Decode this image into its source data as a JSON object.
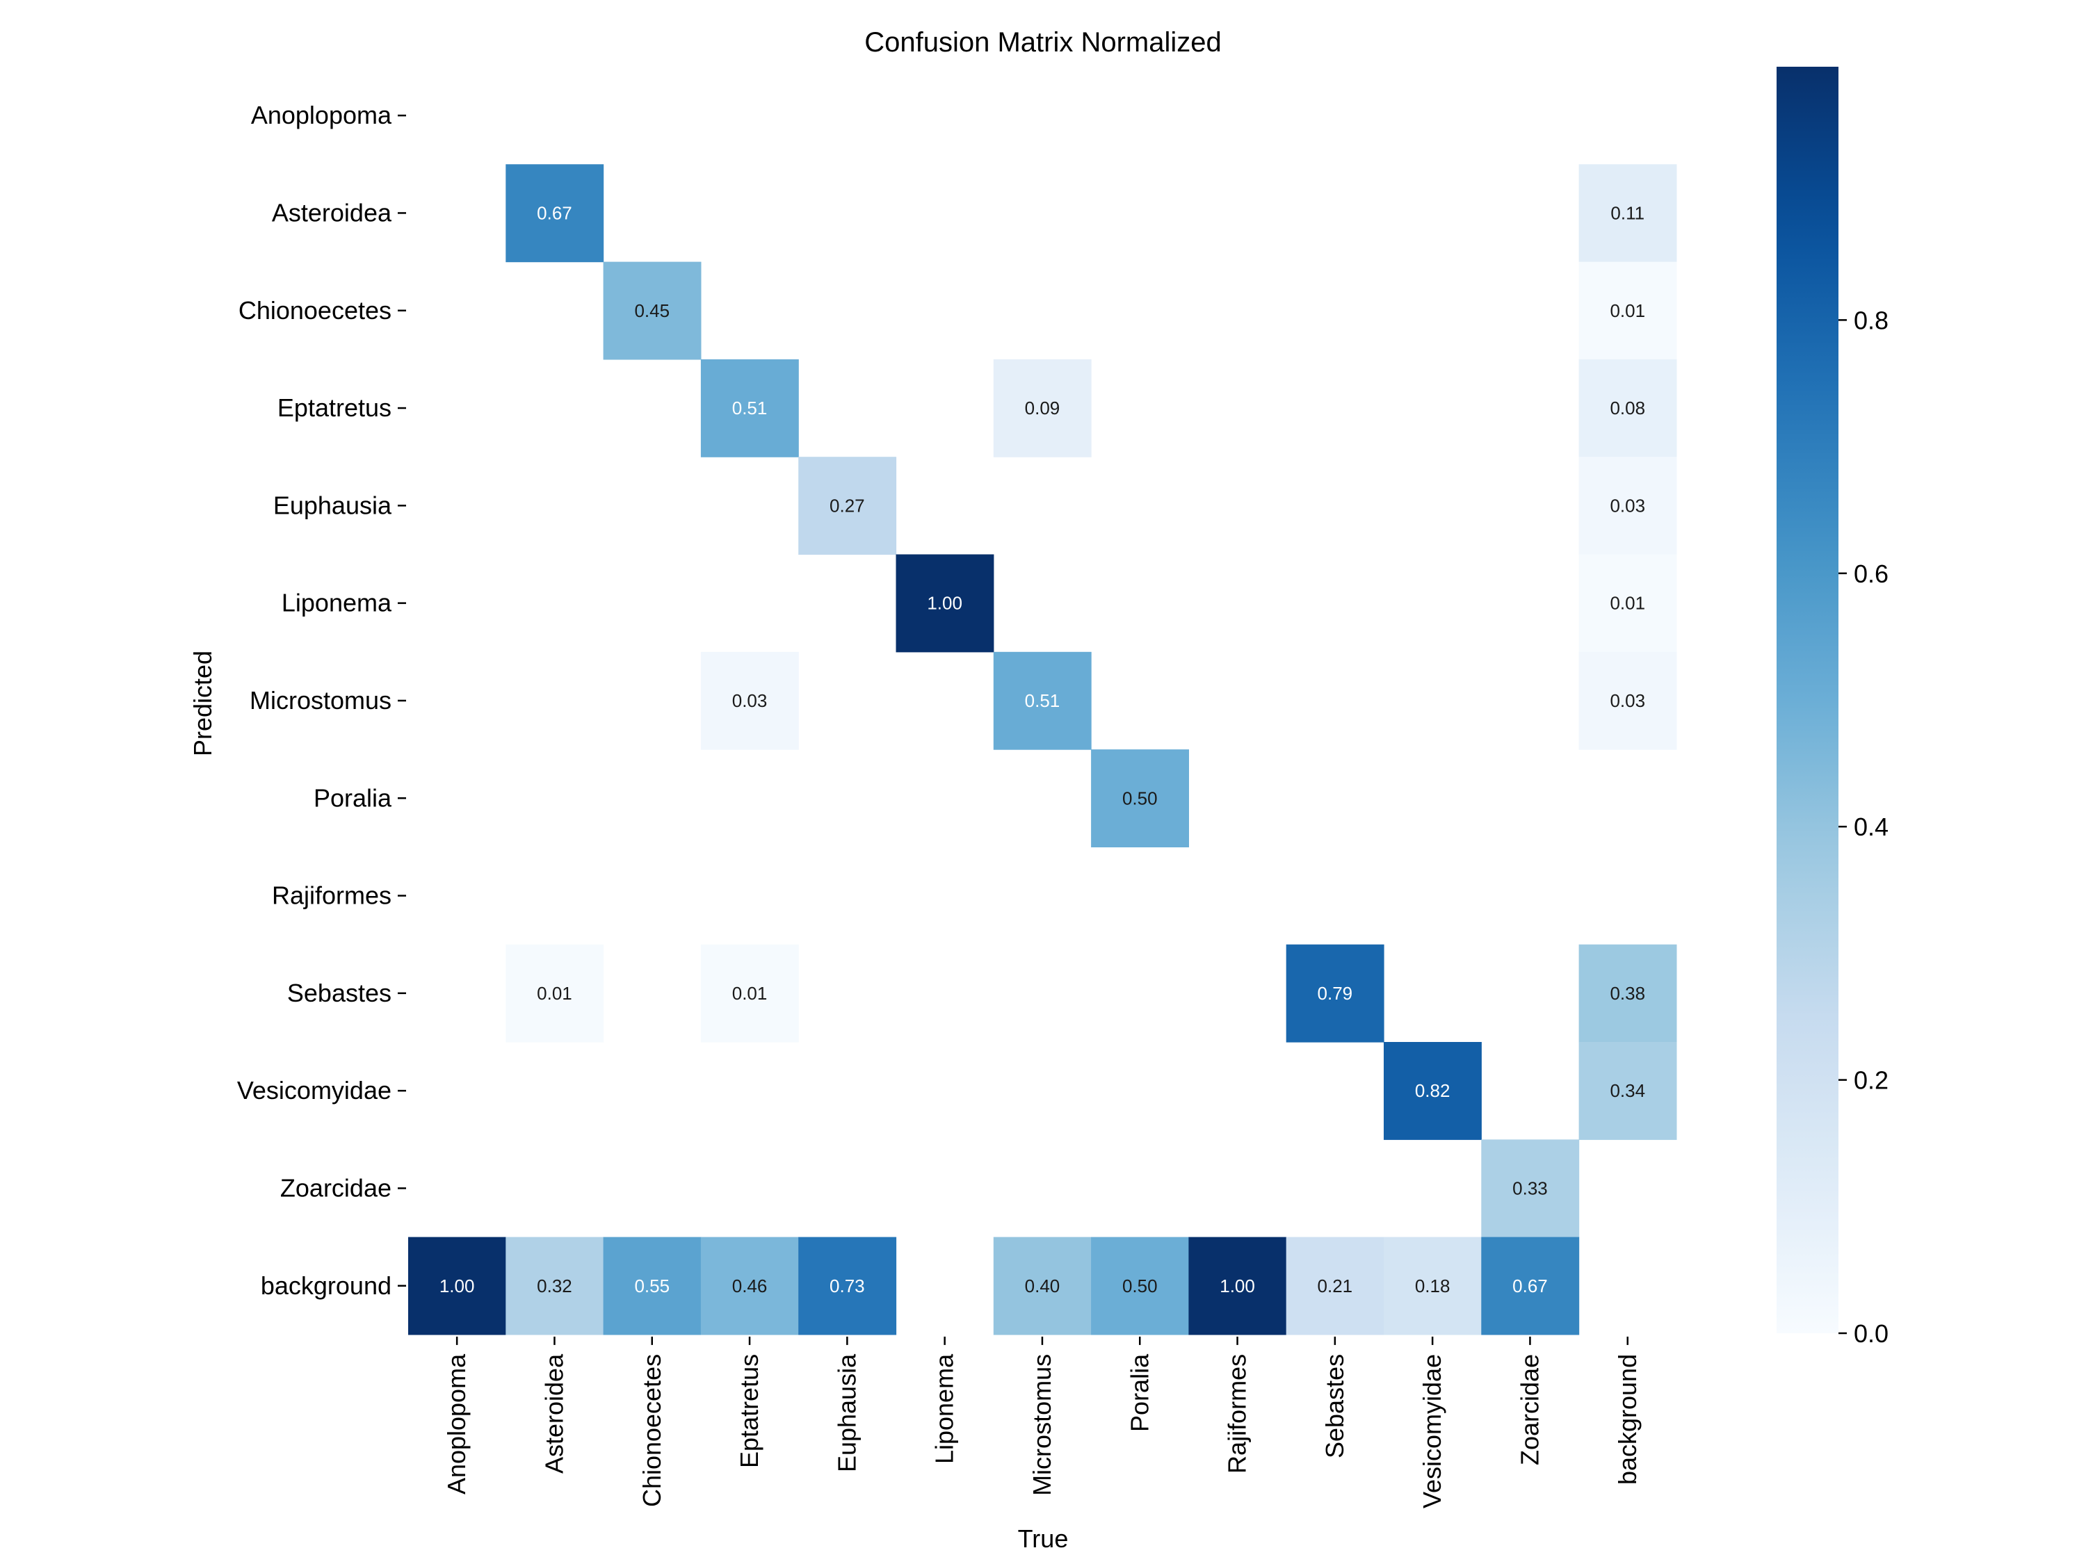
{
  "chart_data": {
    "type": "heatmap",
    "title": "Confusion Matrix Normalized",
    "xlabel": "True",
    "ylabel": "Predicted",
    "x_categories": [
      "Anoplopoma",
      "Asteroidea",
      "Chionoecetes",
      "Eptatretus",
      "Euphausia",
      "Liponema",
      "Microstomus",
      "Poralia",
      "Rajiformes",
      "Sebastes",
      "Vesicomyidae",
      "Zoarcidae",
      "background"
    ],
    "y_categories": [
      "Anoplopoma",
      "Asteroidea",
      "Chionoecetes",
      "Eptatretus",
      "Euphausia",
      "Liponema",
      "Microstomus",
      "Poralia",
      "Rajiformes",
      "Sebastes",
      "Vesicomyidae",
      "Zoarcidae",
      "background"
    ],
    "values": [
      [
        null,
        null,
        null,
        null,
        null,
        null,
        null,
        null,
        null,
        null,
        null,
        null,
        null
      ],
      [
        null,
        0.67,
        null,
        null,
        null,
        null,
        null,
        null,
        null,
        null,
        null,
        null,
        0.11
      ],
      [
        null,
        null,
        0.45,
        null,
        null,
        null,
        null,
        null,
        null,
        null,
        null,
        null,
        0.01
      ],
      [
        null,
        null,
        null,
        0.51,
        null,
        null,
        0.09,
        null,
        null,
        null,
        null,
        null,
        0.08
      ],
      [
        null,
        null,
        null,
        null,
        0.27,
        null,
        null,
        null,
        null,
        null,
        null,
        null,
        0.03
      ],
      [
        null,
        null,
        null,
        null,
        null,
        1.0,
        null,
        null,
        null,
        null,
        null,
        null,
        0.01
      ],
      [
        null,
        null,
        null,
        0.03,
        null,
        null,
        0.51,
        null,
        null,
        null,
        null,
        null,
        0.03
      ],
      [
        null,
        null,
        null,
        null,
        null,
        null,
        null,
        0.5,
        null,
        null,
        null,
        null,
        null
      ],
      [
        null,
        null,
        null,
        null,
        null,
        null,
        null,
        null,
        null,
        null,
        null,
        null,
        null
      ],
      [
        null,
        0.01,
        null,
        0.01,
        null,
        null,
        null,
        null,
        null,
        0.79,
        null,
        null,
        0.38
      ],
      [
        null,
        null,
        null,
        null,
        null,
        null,
        null,
        null,
        null,
        null,
        0.82,
        null,
        0.34
      ],
      [
        null,
        null,
        null,
        null,
        null,
        null,
        null,
        null,
        null,
        null,
        null,
        0.33,
        null
      ],
      [
        1.0,
        0.32,
        0.55,
        0.46,
        0.73,
        null,
        0.4,
        0.5,
        1.0,
        0.21,
        0.18,
        0.67,
        null
      ]
    ],
    "colormap": "Blues",
    "colorbar": {
      "min": 0.0,
      "max": 1.0,
      "ticks": [
        0.0,
        0.2,
        0.4,
        0.6,
        0.8
      ],
      "tick_labels": [
        "0.0",
        "0.2",
        "0.4",
        "0.6",
        "0.8"
      ]
    },
    "grid": false
  }
}
